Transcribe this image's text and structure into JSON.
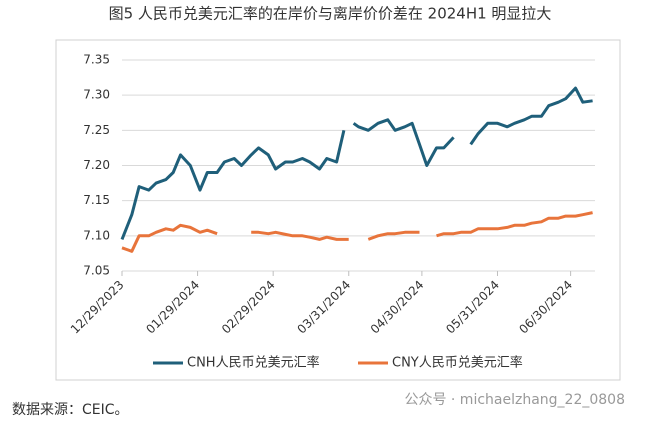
{
  "chart_data": {
    "type": "line",
    "title": "图5   人民币兑美元汇率的在岸价与离岸价价差在 2024H1 明显拉大",
    "source": "数据来源：CEIC。",
    "watermark": "公众号 · michaelzhang_22_0808",
    "x": [
      "12/29/2023",
      "01/02/2024",
      "01/05/2024",
      "01/09/2024",
      "01/12/2024",
      "01/16/2024",
      "01/19/2024",
      "01/22/2024",
      "01/26/2024",
      "01/30/2024",
      "02/02/2024",
      "02/06/2024",
      "02/09/2024",
      "02/13/2024",
      "02/16/2024",
      "02/20/2024",
      "02/23/2024",
      "02/27/2024",
      "03/01/2024",
      "03/05/2024",
      "03/08/2024",
      "03/12/2024",
      "03/15/2024",
      "03/19/2024",
      "03/22/2024",
      "03/26/2024",
      "03/29/2024",
      "03/31/2024",
      "04/02/2024",
      "04/04/2024",
      "04/08/2024",
      "04/12/2024",
      "04/16/2024",
      "04/19/2024",
      "04/23/2024",
      "04/26/2024",
      "04/29/2024",
      "05/02/2024",
      "05/06/2024",
      "05/09/2024",
      "05/13/2024",
      "05/16/2024",
      "05/20/2024",
      "05/23/2024",
      "05/27/2024",
      "05/31/2024",
      "06/04/2024",
      "06/07/2024",
      "06/11/2024",
      "06/14/2024",
      "06/18/2024",
      "06/21/2024",
      "06/25/2024",
      "06/28/2024",
      "07/02/2024",
      "07/05/2024",
      "07/09/2024"
    ],
    "series": [
      {
        "name": "CNH人民币兑美元汇率",
        "color": "#1f5f7a",
        "values": [
          7.095,
          7.13,
          7.17,
          7.165,
          7.175,
          7.18,
          7.19,
          7.215,
          7.2,
          7.165,
          7.19,
          7.19,
          7.205,
          7.21,
          7.2,
          7.215,
          7.225,
          7.215,
          7.195,
          7.205,
          7.205,
          7.21,
          7.205,
          7.195,
          7.21,
          7.205,
          7.25,
          null,
          7.26,
          7.255,
          7.25,
          7.26,
          7.265,
          7.25,
          7.255,
          7.26,
          7.23,
          7.2,
          7.225,
          7.225,
          7.24,
          null,
          7.23,
          7.245,
          7.26,
          7.26,
          7.255,
          7.26,
          7.265,
          7.27,
          7.27,
          7.285,
          7.29,
          7.295,
          7.31,
          7.29,
          7.292
        ]
      },
      {
        "name": "CNY人民币兑美元汇率",
        "color": "#e8743b",
        "values": [
          7.083,
          7.078,
          7.1,
          7.1,
          7.105,
          7.11,
          7.108,
          7.115,
          7.112,
          7.105,
          7.108,
          7.103,
          null,
          null,
          null,
          7.105,
          7.105,
          7.103,
          7.105,
          7.102,
          7.1,
          7.1,
          7.098,
          7.095,
          7.098,
          7.095,
          7.095,
          7.095,
          null,
          null,
          7.095,
          7.1,
          7.103,
          7.103,
          7.105,
          7.105,
          7.105,
          null,
          7.1,
          7.103,
          7.103,
          7.105,
          7.105,
          7.11,
          7.11,
          7.11,
          7.112,
          7.115,
          7.115,
          7.118,
          7.12,
          7.125,
          7.125,
          7.128,
          7.128,
          7.13,
          7.133
        ]
      }
    ],
    "xlim": [
      "12/29/2023",
      "07/10/2024"
    ],
    "xticks": [
      "12/29/2023",
      "01/29/2024",
      "02/29/2024",
      "03/31/2024",
      "04/30/2024",
      "05/31/2024",
      "06/30/2024"
    ],
    "ylim": [
      7.05,
      7.35
    ],
    "yticks": [
      7.05,
      {
        "value": 7.1,
        "label": "7.10"
      },
      7.15,
      {
        "value": 7.2,
        "label": "7.20"
      },
      7.25,
      {
        "value": 7.3,
        "label": "7.30"
      },
      7.35
    ],
    "grid": true,
    "legend": "bottom"
  }
}
